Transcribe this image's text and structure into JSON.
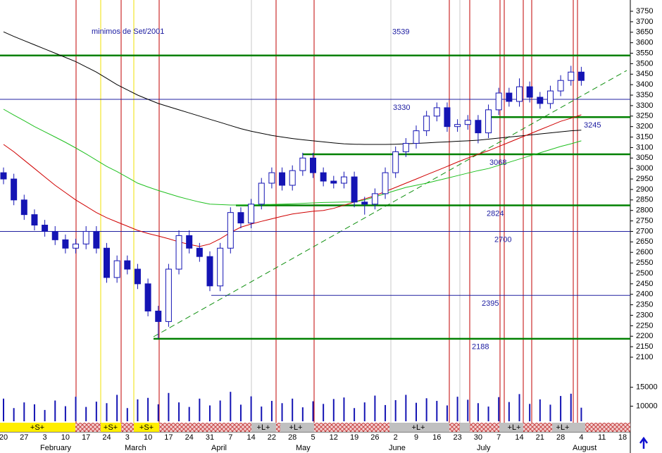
{
  "chart_data": {
    "type": "candlestick",
    "annotation": "minimos de Set/2001",
    "categories": [
      "20",
      null,
      "27",
      null,
      "3",
      null,
      "10",
      null,
      "17",
      null,
      "24",
      null,
      "3",
      null,
      "10",
      null,
      "17",
      null,
      "24",
      null,
      "31",
      null,
      "7",
      null,
      "14",
      null,
      "22",
      null,
      "28",
      null,
      "5",
      null,
      "12",
      null,
      "19",
      null,
      "26",
      null,
      "2",
      null,
      "9",
      null,
      "16",
      null,
      "23",
      null,
      "30",
      null,
      "7",
      null,
      "14",
      null,
      "21",
      null,
      "28",
      null,
      "4",
      null,
      "11",
      null,
      "18",
      null
    ],
    "months": [
      "February",
      "March",
      "April",
      "May",
      "June",
      "July",
      "August"
    ],
    "open": [
      2980,
      2950,
      2850,
      2780,
      2730,
      2700,
      2660,
      2620,
      2640,
      2700,
      2620,
      2480,
      2560,
      2520,
      2450,
      2320,
      2270,
      2520,
      2680,
      2620,
      2580,
      2440,
      2620,
      2790,
      2740,
      2830,
      2930,
      2980,
      2920,
      2990,
      3050,
      2980,
      2940,
      2930,
      2960,
      2840,
      2830,
      2880,
      2980,
      3080,
      3120,
      3180,
      3250,
      3290,
      3200,
      3210,
      3230,
      3170,
      3280,
      3360,
      3320,
      3390,
      3340,
      3310,
      3370,
      3420,
      3460,
      null,
      null,
      null,
      null,
      null
    ],
    "high": [
      3005,
      2975,
      2875,
      2805,
      2755,
      2725,
      2685,
      2665,
      2725,
      2725,
      2645,
      2585,
      2585,
      2545,
      2475,
      2345,
      2545,
      2705,
      2705,
      2645,
      2605,
      2645,
      2815,
      2815,
      2855,
      2955,
      3005,
      3005,
      3015,
      3075,
      3075,
      3005,
      2965,
      2985,
      2985,
      2865,
      2905,
      3005,
      3105,
      3145,
      3205,
      3275,
      3315,
      3315,
      3235,
      3255,
      3255,
      3305,
      3385,
      3385,
      3430,
      3415,
      3365,
      3395,
      3445,
      3490,
      3485,
      null,
      null,
      null,
      null,
      null
    ],
    "low": [
      2925,
      2825,
      2755,
      2705,
      2675,
      2635,
      2595,
      2595,
      2615,
      2595,
      2455,
      2455,
      2495,
      2425,
      2295,
      2188,
      2245,
      2495,
      2595,
      2555,
      2415,
      2415,
      2595,
      2715,
      2715,
      2805,
      2905,
      2895,
      2895,
      2965,
      2955,
      2915,
      2905,
      2905,
      2815,
      2780,
      2805,
      2855,
      2955,
      3055,
      3095,
      3155,
      3225,
      3175,
      3175,
      3185,
      3120,
      3145,
      3255,
      3295,
      3295,
      3315,
      3285,
      3285,
      3345,
      3395,
      3395,
      null,
      null,
      null,
      null,
      null
    ],
    "close": [
      2950,
      2850,
      2780,
      2730,
      2700,
      2660,
      2620,
      2640,
      2700,
      2620,
      2480,
      2560,
      2520,
      2450,
      2320,
      2270,
      2520,
      2680,
      2620,
      2580,
      2440,
      2620,
      2790,
      2740,
      2830,
      2930,
      2980,
      2920,
      2990,
      3050,
      2980,
      2940,
      2930,
      2960,
      2840,
      2830,
      2880,
      2980,
      3080,
      3120,
      3180,
      3250,
      3290,
      3200,
      3210,
      3230,
      3170,
      3280,
      3360,
      3320,
      3390,
      3340,
      3310,
      3370,
      3420,
      3460,
      3420,
      null,
      null,
      null,
      null,
      null
    ],
    "up_color": "#ffffff",
    "down_color": "#1414b4",
    "wick_color": "#1414b4",
    "overlays": [
      {
        "color": "#000000",
        "values": [
          3652,
          3630,
          3610,
          3590,
          3570,
          3550,
          3530,
          3510,
          3485,
          3460,
          3430,
          3400,
          3375,
          3350,
          3330,
          3310,
          3295,
          3280,
          3265,
          3250,
          3235,
          3220,
          3205,
          3190,
          3178,
          3168,
          3158,
          3150,
          3143,
          3137,
          3132,
          3127,
          3122,
          3118,
          3116,
          3115,
          3115,
          3115,
          3116,
          3118,
          3120,
          3122,
          3125,
          3127,
          3130,
          3132,
          3135,
          3140,
          3145,
          3150,
          3155,
          3160,
          3165,
          3170,
          3175,
          3180,
          3183,
          null,
          null,
          null,
          null,
          null
        ]
      },
      {
        "color": "#d00000",
        "values": [
          3115,
          3080,
          3040,
          3000,
          2960,
          2920,
          2885,
          2850,
          2820,
          2790,
          2765,
          2745,
          2725,
          2705,
          2690,
          2678,
          2665,
          2650,
          2638,
          2628,
          2640,
          2665,
          2695,
          2720,
          2735,
          2748,
          2760,
          2772,
          2783,
          2790,
          2796,
          2800,
          2810,
          2825,
          2840,
          2855,
          2870,
          2890,
          2910,
          2930,
          2950,
          2970,
          2990,
          3010,
          3031,
          3050,
          3068,
          3085,
          3105,
          3125,
          3145,
          3165,
          3185,
          3205,
          3225,
          3240,
          3256,
          null,
          null,
          null,
          null,
          null
        ]
      },
      {
        "color": "#20c020",
        "values": [
          3283,
          3255,
          3228,
          3200,
          3175,
          3150,
          3125,
          3098,
          3070,
          3040,
          3010,
          2985,
          2958,
          2930,
          2912,
          2895,
          2880,
          2865,
          2852,
          2840,
          2830,
          2828,
          2826,
          2826,
          2827,
          2828,
          2829,
          2830,
          2832,
          2834,
          2836,
          2838,
          2839,
          2840,
          2840,
          2850,
          2865,
          2880,
          2895,
          2910,
          2920,
          2930,
          2942,
          2954,
          2966,
          2978,
          2990,
          3000,
          3015,
          3030,
          3045,
          3060,
          3075,
          3090,
          3105,
          3118,
          3132,
          null,
          null,
          null,
          null,
          null
        ]
      }
    ],
    "levels": [
      {
        "value": 3539,
        "color": "#008000"
      },
      {
        "value": 3330,
        "color": "#2020a0"
      },
      {
        "value": 3245,
        "color": "#008000"
      },
      {
        "value": 3068,
        "color": "#008000"
      },
      {
        "value": 2824,
        "color": "#008000"
      },
      {
        "value": 2700,
        "color": "#2020a0"
      },
      {
        "value": 2395,
        "color": "#2020a0"
      },
      {
        "value": 2188,
        "color": "#008000"
      }
    ],
    "ylim": [
      2100,
      3750
    ],
    "yticks": [
      2100,
      2150,
      2200,
      2250,
      2300,
      2350,
      2400,
      2450,
      2500,
      2550,
      2600,
      2650,
      2700,
      2750,
      2800,
      2850,
      2900,
      2950,
      3000,
      3050,
      3100,
      3150,
      3200,
      3250,
      3300,
      3350,
      3400,
      3450,
      3500,
      3550,
      3600,
      3650,
      3700,
      3750
    ],
    "volume": [
      12000,
      9500,
      11000,
      10500,
      9000,
      11500,
      10000,
      12500,
      9800,
      11200,
      10800,
      13000,
      9500,
      11800,
      12200,
      10500,
      13500,
      11000,
      9800,
      12000,
      10200,
      11500,
      13800,
      10400,
      12600,
      9900,
      11400,
      10800,
      12000,
      9700,
      11300,
      10600,
      11900,
      12300,
      9500,
      11000,
      12800,
      10300,
      11600,
      13000,
      10900,
      12100,
      11400,
      10200,
      12500,
      11700,
      10800,
      9900,
      12400,
      11100,
      13200,
      10600,
      11800,
      10400,
      12700,
      13300,
      9600,
      null,
      null,
      null,
      null,
      null
    ],
    "volume_color": "#1414b4",
    "volume_ylim": [
      6000,
      17000
    ],
    "volume_yticks": [
      10000,
      15000
    ],
    "signals": [
      "+S+",
      "+S+",
      "+S+",
      "+L+",
      "+L+",
      "+L+",
      "+L+",
      "+L+"
    ]
  }
}
